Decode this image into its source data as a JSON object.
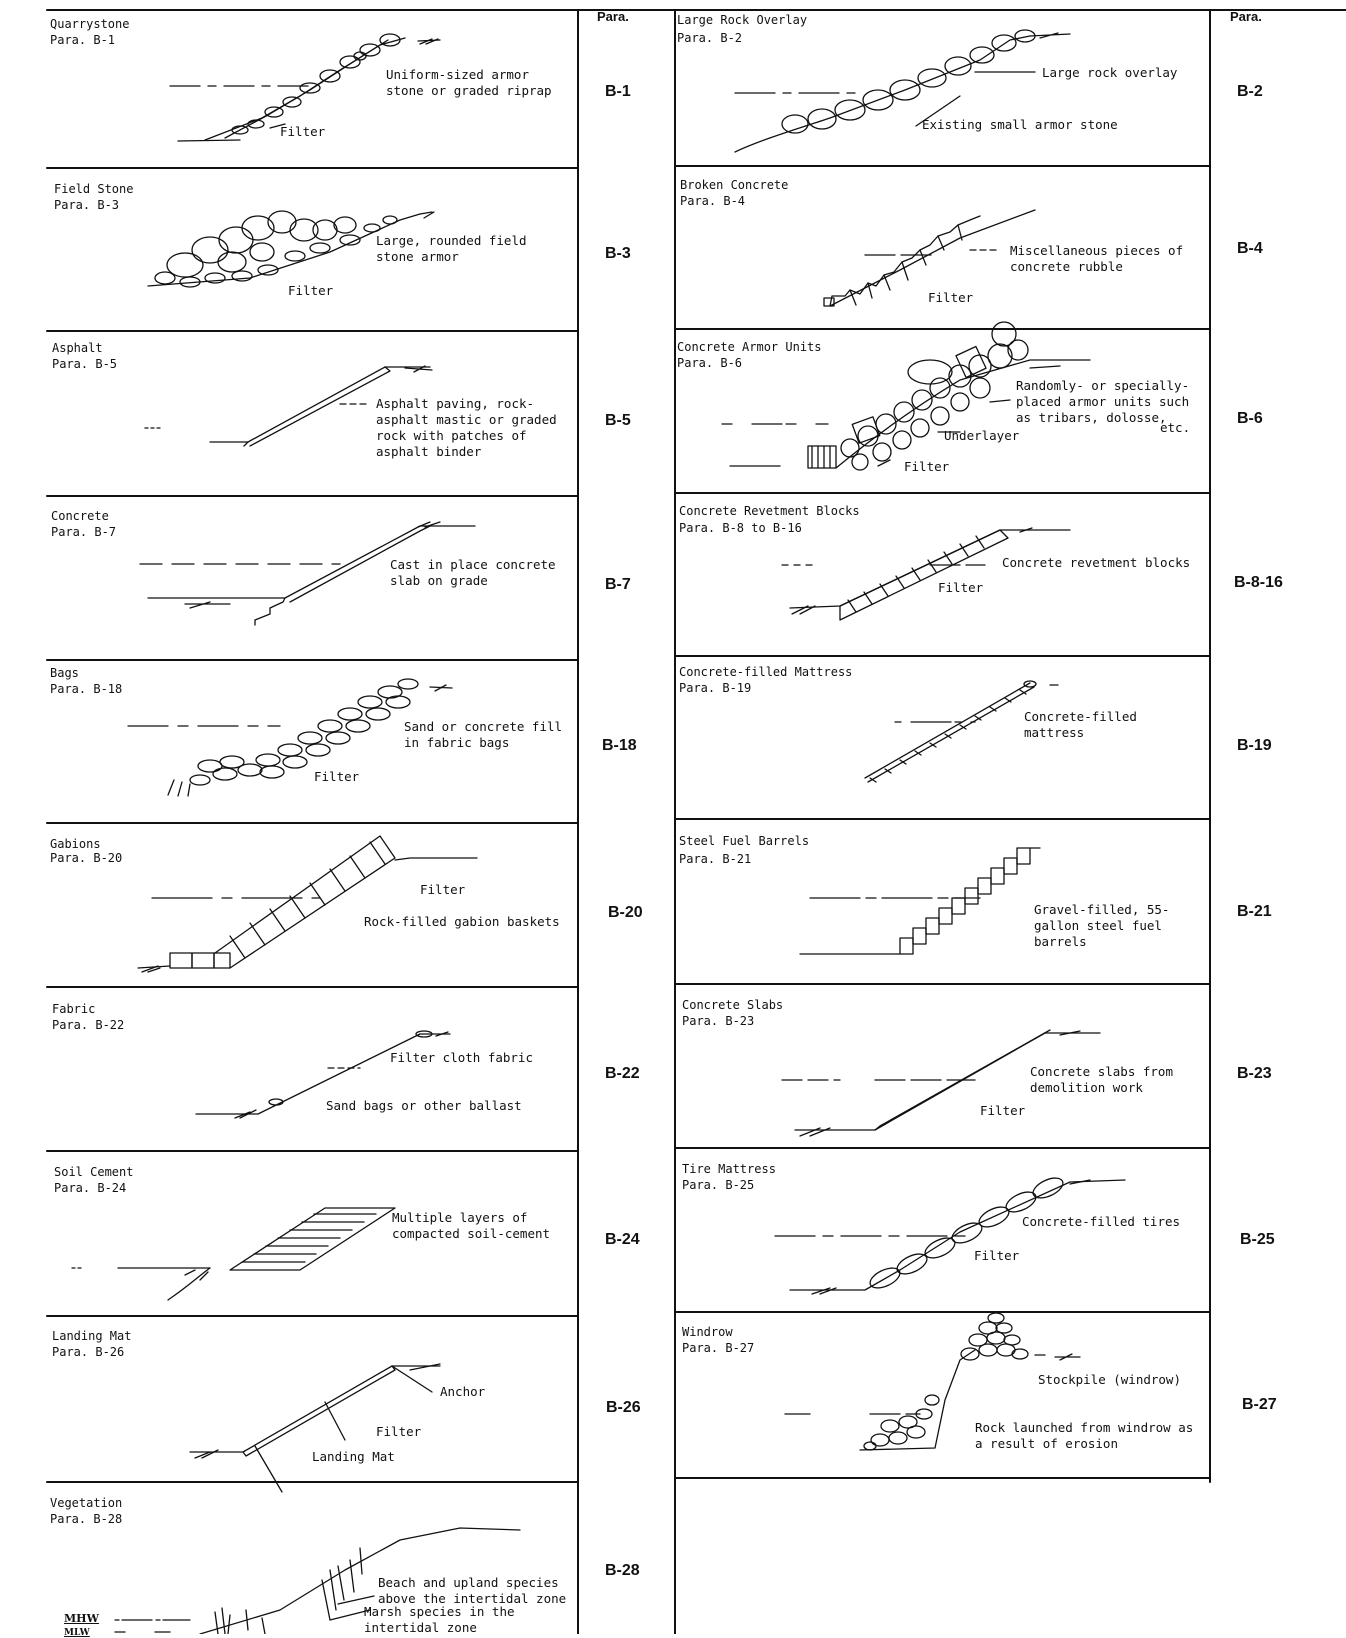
{
  "headers": {
    "left": "Para.",
    "right": "Para."
  },
  "left": [
    {
      "title": "Quarrystone",
      "para": "Para. B-1",
      "code": "B-1",
      "labels": [
        "Uniform-sized armor\nstone or graded riprap",
        "Filter"
      ]
    },
    {
      "title": "Field Stone",
      "para": "Para. B-3",
      "code": "B-3",
      "labels": [
        "Large, rounded field\nstone armor",
        "Filter"
      ]
    },
    {
      "title": "Asphalt",
      "para": "Para. B-5",
      "code": "B-5",
      "labels": [
        "Asphalt paving, rock-\nasphalt mastic or graded\nrock with patches of\nasphalt binder"
      ]
    },
    {
      "title": "Concrete",
      "para": "Para. B-7",
      "code": "B-7",
      "labels": [
        "Cast in place concrete\nslab on grade"
      ]
    },
    {
      "title": "Bags",
      "para": "Para. B-18",
      "code": "B-18",
      "labels": [
        "Sand or concrete fill\nin fabric bags",
        "Filter"
      ]
    },
    {
      "title": "Gabions",
      "para": "Para. B-20",
      "code": "B-20",
      "labels": [
        "Filter",
        "Rock-filled gabion baskets"
      ]
    },
    {
      "title": "Fabric",
      "para": "Para. B-22",
      "code": "B-22",
      "labels": [
        "Filter cloth fabric",
        "Sand bags or other ballast"
      ]
    },
    {
      "title": "Soil Cement",
      "para": "Para. B-24",
      "code": "B-24",
      "labels": [
        "Multiple layers of\ncompacted soil-cement"
      ]
    },
    {
      "title": "Landing Mat",
      "para": "Para. B-26",
      "code": "B-26",
      "labels": [
        "Anchor",
        "Filter",
        "Landing Mat"
      ]
    },
    {
      "title": "Vegetation",
      "para": "Para. B-28",
      "code": "B-28",
      "labels": [
        "Beach and upland species\nabove the intertidal zone",
        "Marsh species in the\nintertidal zone"
      ],
      "marks": [
        "MHW",
        "MLW"
      ]
    }
  ],
  "right": [
    {
      "title": "Large Rock Overlay",
      "para": "Para. B-2",
      "code": "B-2",
      "labels": [
        "Large rock overlay",
        "Existing small armor stone"
      ]
    },
    {
      "title": "Broken Concrete",
      "para": "Para. B-4",
      "code": "B-4",
      "labels": [
        "Miscellaneous pieces of\nconcrete rubble",
        "Filter"
      ]
    },
    {
      "title": "Concrete Armor Units",
      "para": "Para. B-6",
      "code": "B-6",
      "labels": [
        "Randomly- or specially-\nplaced armor units such\nas tribars, dolosse,",
        "etc.",
        "Underlayer",
        "Filter"
      ]
    },
    {
      "title": "Concrete Revetment Blocks",
      "para": "Para. B-8 to B-16",
      "code": "B-8-16",
      "labels": [
        "Concrete revetment blocks",
        "Filter"
      ]
    },
    {
      "title": "Concrete-filled Mattress",
      "para": "Para. B-19",
      "code": "B-19",
      "labels": [
        "Concrete-filled\nmattress"
      ]
    },
    {
      "title": "Steel Fuel Barrels",
      "para": "Para. B-21",
      "code": "B-21",
      "labels": [
        "Gravel-filled, 55-\ngallon steel fuel\nbarrels"
      ]
    },
    {
      "title": "Concrete Slabs",
      "para": "Para. B-23",
      "code": "B-23",
      "labels": [
        "Concrete slabs from\ndemolition work",
        "Filter"
      ]
    },
    {
      "title": "Tire Mattress",
      "para": "Para. B-25",
      "code": "B-25",
      "labels": [
        "Concrete-filled tires",
        "Filter"
      ]
    },
    {
      "title": "Windrow",
      "para": "Para. B-27",
      "code": "B-27",
      "labels": [
        "Stockpile (windrow)",
        "Rock launched from windrow as\na result of erosion"
      ]
    }
  ]
}
